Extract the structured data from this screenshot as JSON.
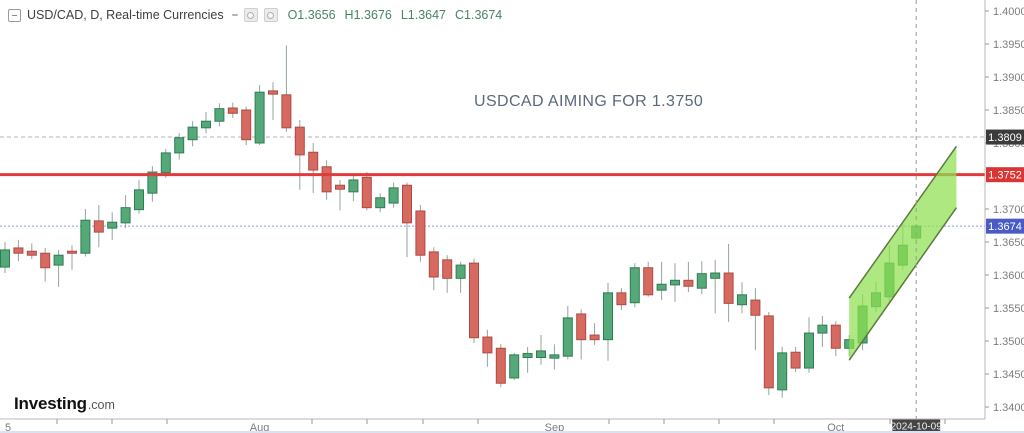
{
  "legend": {
    "symbol": "USD/CAD, D, Real-time Currencies",
    "ohlc": {
      "o": "O1.3656",
      "h": "H1.3676",
      "l": "L1.3647",
      "c": "C1.3674"
    }
  },
  "annotation": {
    "text": "USDCAD AIMING FOR 1.3750"
  },
  "watermark": {
    "brand": "Investing",
    "tld": ".com"
  },
  "colors": {
    "candle_up": "#55a878",
    "candle_up_border": "#2e7d52",
    "candle_down": "#d66a60",
    "candle_down_border": "#ae4a43",
    "wick": "#93a59b",
    "resistance_line": "#e23b3b",
    "resistance_tag": "#d93535",
    "alert_line": "#b3b3b3",
    "alert_tag": "#3b3b3b",
    "current_line": "#8c9ade",
    "current_tag": "#4b5bc6",
    "channel_fill": "#8ee04f",
    "channel_edge": "#5c7a3e",
    "axis_text": "#7d7d7d",
    "axis_line": "#b8b8b8",
    "tick": "#999999",
    "crosshair": "#9b9b9b",
    "date_tag_bg": "#454545",
    "date_tag_text": "#f2f2f2"
  },
  "chart_data": {
    "type": "candlestick",
    "symbol": "USD/CAD",
    "interval": "D",
    "title": "USDCAD AIMING FOR 1.3750",
    "ylim": [
      1.34,
      1.4
    ],
    "y_tick_step": 0.005,
    "y_ticks": [
      1.4,
      1.395,
      1.39,
      1.385,
      1.38,
      1.37,
      1.365,
      1.36,
      1.355,
      1.35,
      1.345,
      1.34
    ],
    "x_labels": [
      {
        "label": "5",
        "index": 0
      },
      {
        "label": "Aug",
        "index": 19
      },
      {
        "label": "Sep",
        "index": 41
      },
      {
        "label": "Oct",
        "index": 62
      }
    ],
    "date_tag": {
      "text": "2024-10-09",
      "index": 68
    },
    "crosshair_index": 68,
    "price_lines": {
      "resistance": {
        "price": 1.3752,
        "label": "1.3752",
        "style": "solid-red"
      },
      "alert": {
        "price": 1.3809,
        "label": "1.3809",
        "style": "dashed-gray"
      },
      "current": {
        "price": 1.3674,
        "label": "1.3674",
        "style": "dotted-blue"
      },
      "covered_tick": {
        "price": 1.38,
        "label": "1.3800"
      }
    },
    "channel": {
      "left_index": 63,
      "right_index": 71,
      "left_top": 1.3565,
      "left_bottom": 1.3471,
      "right_top": 1.3795,
      "right_bottom": 1.3702
    },
    "candles": [
      [
        1.3612,
        1.365,
        1.3603,
        1.3638
      ],
      [
        1.3641,
        1.3653,
        1.3621,
        1.3633
      ],
      [
        1.3636,
        1.3648,
        1.3624,
        1.363
      ],
      [
        1.3633,
        1.3641,
        1.359,
        1.3611
      ],
      [
        1.3615,
        1.3638,
        1.3582,
        1.363
      ],
      [
        1.3636,
        1.3645,
        1.3608,
        1.3633
      ],
      [
        1.3633,
        1.37,
        1.3628,
        1.3683
      ],
      [
        1.3682,
        1.3706,
        1.3642,
        1.3665
      ],
      [
        1.3671,
        1.3695,
        1.3653,
        1.368
      ],
      [
        1.3679,
        1.3721,
        1.3671,
        1.3702
      ],
      [
        1.3699,
        1.3744,
        1.3693,
        1.3729
      ],
      [
        1.3724,
        1.3765,
        1.3711,
        1.3756
      ],
      [
        1.3755,
        1.3791,
        1.3747,
        1.3785
      ],
      [
        1.3785,
        1.3815,
        1.3775,
        1.3808
      ],
      [
        1.3805,
        1.3833,
        1.3795,
        1.3824
      ],
      [
        1.3823,
        1.3847,
        1.3815,
        1.3833
      ],
      [
        1.3833,
        1.386,
        1.3825,
        1.3852
      ],
      [
        1.3853,
        1.3861,
        1.3838,
        1.3845
      ],
      [
        1.385,
        1.3855,
        1.3797,
        1.3805
      ],
      [
        1.38,
        1.3888,
        1.3797,
        1.3877
      ],
      [
        1.3879,
        1.3892,
        1.3835,
        1.3874
      ],
      [
        1.3873,
        1.3948,
        1.3817,
        1.3823
      ],
      [
        1.3824,
        1.3835,
        1.3729,
        1.3782
      ],
      [
        1.3786,
        1.38,
        1.3724,
        1.3759
      ],
      [
        1.3764,
        1.3774,
        1.3714,
        1.3726
      ],
      [
        1.3736,
        1.3744,
        1.3698,
        1.373
      ],
      [
        1.3726,
        1.375,
        1.3712,
        1.3744
      ],
      [
        1.3748,
        1.3756,
        1.3698,
        1.3702
      ],
      [
        1.3702,
        1.3724,
        1.3695,
        1.3717
      ],
      [
        1.3709,
        1.374,
        1.3702,
        1.3732
      ],
      [
        1.3736,
        1.374,
        1.3627,
        1.3679
      ],
      [
        1.3697,
        1.3706,
        1.362,
        1.363
      ],
      [
        1.3635,
        1.3642,
        1.3577,
        1.3597
      ],
      [
        1.3623,
        1.363,
        1.3573,
        1.3595
      ],
      [
        1.3595,
        1.362,
        1.3573,
        1.3615
      ],
      [
        1.3618,
        1.3625,
        1.3497,
        1.3505
      ],
      [
        1.3506,
        1.3517,
        1.3461,
        1.3482
      ],
      [
        1.3489,
        1.3495,
        1.343,
        1.3436
      ],
      [
        1.3444,
        1.3482,
        1.3441,
        1.3479
      ],
      [
        1.3475,
        1.3491,
        1.3452,
        1.3481
      ],
      [
        1.3475,
        1.3509,
        1.3464,
        1.3485
      ],
      [
        1.3474,
        1.3495,
        1.3457,
        1.3479
      ],
      [
        1.3477,
        1.3553,
        1.3472,
        1.3535
      ],
      [
        1.3541,
        1.3548,
        1.3472,
        1.3502
      ],
      [
        1.3509,
        1.3527,
        1.3494,
        1.3502
      ],
      [
        1.3502,
        1.3588,
        1.347,
        1.3573
      ],
      [
        1.3573,
        1.358,
        1.3547,
        1.3555
      ],
      [
        1.3558,
        1.3618,
        1.3551,
        1.3611
      ],
      [
        1.3611,
        1.362,
        1.3567,
        1.357
      ],
      [
        1.3577,
        1.362,
        1.3562,
        1.3586
      ],
      [
        1.3585,
        1.3618,
        1.3559,
        1.3592
      ],
      [
        1.3592,
        1.362,
        1.3574,
        1.3583
      ],
      [
        1.358,
        1.3621,
        1.3571,
        1.3602
      ],
      [
        1.3595,
        1.3623,
        1.3542,
        1.3603
      ],
      [
        1.3603,
        1.3647,
        1.3529,
        1.3557
      ],
      [
        1.3555,
        1.3589,
        1.3542,
        1.357
      ],
      [
        1.3562,
        1.358,
        1.3486,
        1.3539
      ],
      [
        1.3538,
        1.3544,
        1.3418,
        1.3429
      ],
      [
        1.3426,
        1.3491,
        1.3414,
        1.3482
      ],
      [
        1.3483,
        1.3491,
        1.3453,
        1.3459
      ],
      [
        1.3459,
        1.3536,
        1.3452,
        1.3512
      ],
      [
        1.3512,
        1.3538,
        1.3491,
        1.3524
      ],
      [
        1.3524,
        1.353,
        1.3477,
        1.3489
      ],
      [
        1.3489,
        1.3509,
        1.3477,
        1.3502
      ],
      [
        1.3497,
        1.3571,
        1.3486,
        1.3553
      ],
      [
        1.3552,
        1.359,
        1.3544,
        1.3573
      ],
      [
        1.3567,
        1.3645,
        1.3559,
        1.3618
      ],
      [
        1.3615,
        1.3678,
        1.3608,
        1.3645
      ],
      [
        1.3656,
        1.3676,
        1.3647,
        1.3674
      ]
    ],
    "layout": {
      "x0": 5,
      "dx": 13.4,
      "p_ref": 1.38,
      "y_ref": 143,
      "scale": 6600,
      "axis_x": 985,
      "axis_y": 419,
      "body_w": 9,
      "minor_xticks": [
        57,
        112,
        167,
        312,
        367,
        423,
        478,
        609,
        664,
        719,
        774,
        890,
        945
      ],
      "legend_position": "top-left"
    }
  }
}
